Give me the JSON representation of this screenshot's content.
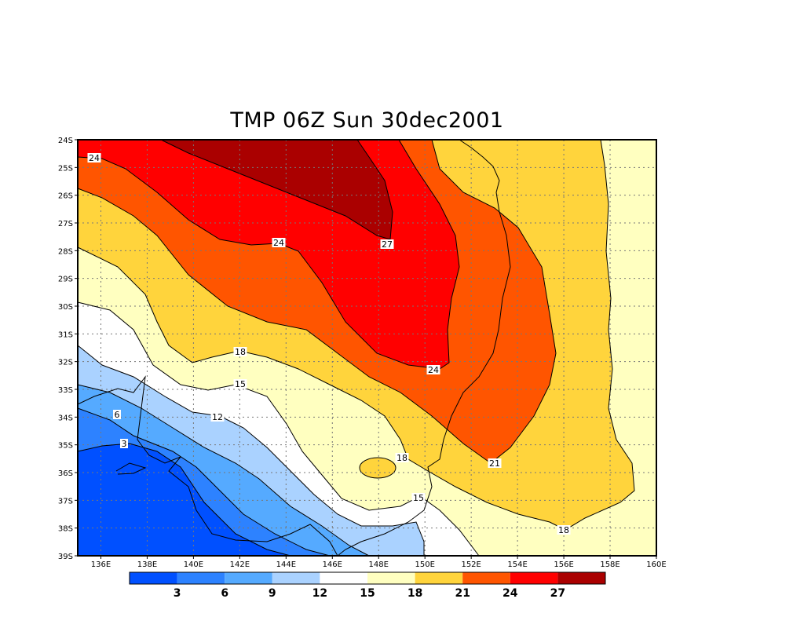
{
  "chart_data": {
    "type": "heatmap",
    "subtype": "filled-contour-map",
    "title": "TMP 06Z Sun 30dec2001",
    "variable": "TMP",
    "x_range_deg_east": [
      135,
      160
    ],
    "y_range_deg_south": [
      24,
      39
    ],
    "x_ticks": [
      "136E",
      "138E",
      "140E",
      "142E",
      "144E",
      "146E",
      "148E",
      "150E",
      "152E",
      "154E",
      "156E",
      "158E",
      "160E"
    ],
    "y_ticks": [
      "24S",
      "25S",
      "26S",
      "27S",
      "28S",
      "29S",
      "30S",
      "31S",
      "32S",
      "33S",
      "34S",
      "35S",
      "36S",
      "37S",
      "38S",
      "39S"
    ],
    "contour_levels": [
      3,
      6,
      9,
      12,
      15,
      18,
      21,
      24,
      27
    ],
    "colorbar_labels": [
      "3",
      "6",
      "9",
      "12",
      "15",
      "18",
      "21",
      "24",
      "27"
    ],
    "colorbar_colors": [
      "#0050ff",
      "#2d82ff",
      "#55aaff",
      "#aad2ff",
      "#ffffff",
      "#ffffc0",
      "#ffd43c",
      "#ff5500",
      "#ff0000",
      "#aa0000"
    ],
    "contour_labels": [
      "24",
      "24",
      "27",
      "18",
      "15",
      "24",
      "12",
      "6",
      "18",
      "3",
      "21",
      "15",
      "18"
    ],
    "grid": true
  }
}
